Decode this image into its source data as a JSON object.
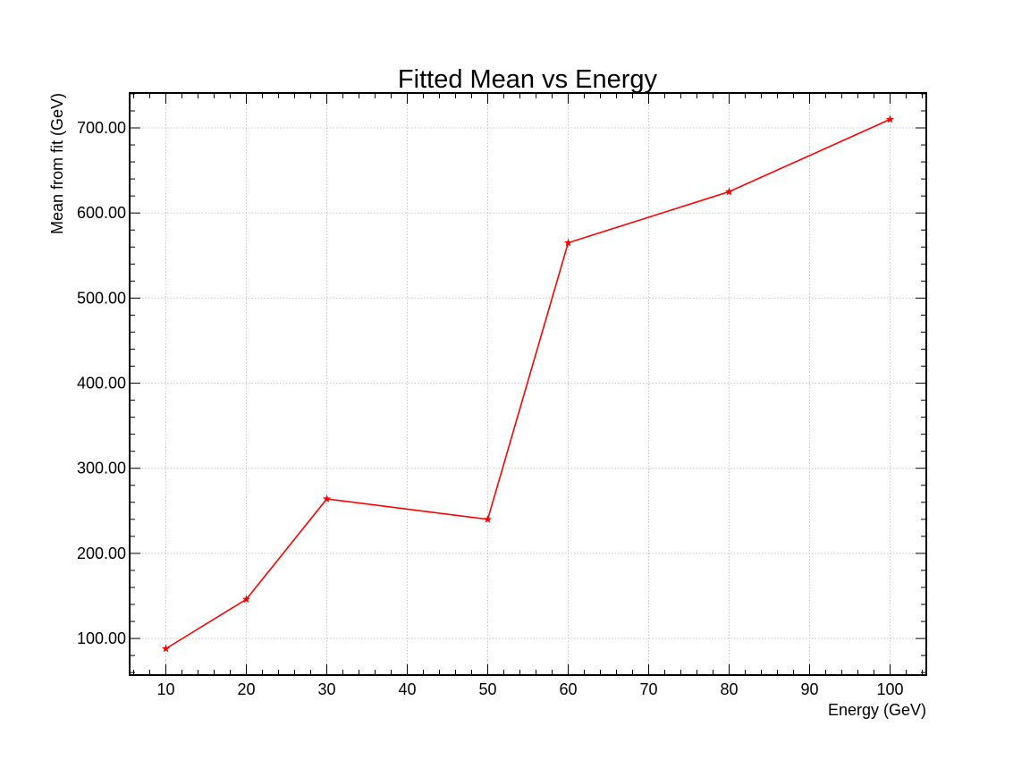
{
  "chart_data": {
    "type": "line",
    "title": "Fitted Mean vs  Energy",
    "xlabel": "Energy (GeV)",
    "ylabel": "Mean from fit (GeV)",
    "xlim": [
      5.5,
      104.5
    ],
    "ylim": [
      57,
      741
    ],
    "x_ticks": [
      10,
      20,
      30,
      40,
      50,
      60,
      70,
      80,
      90,
      100
    ],
    "y_ticks": [
      100,
      200,
      300,
      400,
      500,
      600,
      700
    ],
    "y_tick_decimals": 2,
    "grid": true,
    "marker": "star",
    "series": [
      {
        "color": "#ff0000",
        "points": [
          {
            "x": 10,
            "y": 88
          },
          {
            "x": 20,
            "y": 146
          },
          {
            "x": 30,
            "y": 264
          },
          {
            "x": 50,
            "y": 240
          },
          {
            "x": 60,
            "y": 565
          },
          {
            "x": 80,
            "y": 625
          },
          {
            "x": 100,
            "y": 710
          }
        ]
      }
    ]
  }
}
